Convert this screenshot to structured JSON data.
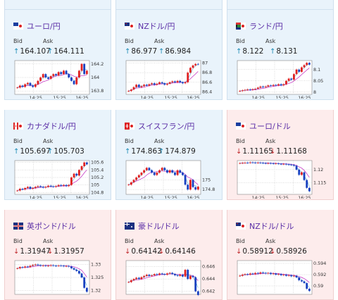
{
  "labels": {
    "bid": "Bid",
    "ask": "Ask"
  },
  "tiles": [
    {
      "id": "usdjpy-top",
      "flag": "us",
      "title": "",
      "dir": "up"
    },
    {
      "id": "eurjpy",
      "flag": "eu",
      "title": "ユーロ/円",
      "dir": "up",
      "bid": "164.107",
      "ask": "164.111",
      "y_ticks": [
        "164.2",
        "164",
        "163.8"
      ],
      "y_ticks_value": [
        164.2,
        164,
        163.8
      ],
      "ylim": [
        163.75,
        164.25
      ],
      "x_ticks": [
        "14:25",
        "15:25",
        "16:25"
      ],
      "series": [
        163.85,
        163.88,
        163.86,
        163.9,
        163.92,
        163.88,
        163.86,
        163.9,
        163.95,
        164.0,
        164.05,
        164.0,
        163.98,
        164.02,
        164.05,
        164.03,
        164.08,
        164.05,
        164.1,
        164.05,
        164.0,
        163.95,
        163.9,
        164.0,
        164.1,
        164.2,
        164.05,
        164.1
      ]
    },
    {
      "id": "nzdjpy",
      "flag": "nz",
      "title": "NZドル/円",
      "dir": "up",
      "bid": "86.977",
      "ask": "86.984",
      "y_ticks": [
        "87",
        "86.8",
        "86.6",
        "86.4"
      ],
      "y_ticks_value": [
        87,
        86.8,
        86.6,
        86.4
      ],
      "ylim": [
        86.35,
        87.05
      ],
      "x_ticks": [
        "14:25",
        "15:25",
        "16:25"
      ],
      "series": [
        86.42,
        86.45,
        86.5,
        86.55,
        86.5,
        86.52,
        86.55,
        86.53,
        86.56,
        86.58,
        86.55,
        86.57,
        86.6,
        86.58,
        86.55,
        86.57,
        86.6,
        86.62,
        86.6,
        86.63,
        86.6,
        86.58,
        86.6,
        86.8,
        86.9,
        86.95,
        86.98,
        86.97
      ]
    },
    {
      "id": "zarjpy",
      "flag": "za",
      "title": "ランド/円",
      "dir": "up",
      "bid": "8.122",
      "ask": "8.131",
      "y_ticks": [
        "8.1",
        "8.05",
        "8"
      ],
      "y_ticks_value": [
        8.1,
        8.05,
        8.0
      ],
      "ylim": [
        7.99,
        8.14
      ],
      "x_ticks": [
        "14:25",
        "15:25",
        "16:25"
      ],
      "series": [
        8.005,
        8.008,
        8.01,
        8.012,
        8.01,
        8.013,
        8.015,
        8.02,
        8.025,
        8.022,
        8.025,
        8.03,
        8.028,
        8.032,
        8.03,
        8.035,
        8.03,
        8.035,
        8.05,
        8.06,
        8.055,
        8.08,
        8.1,
        8.09,
        8.11,
        8.12,
        8.13,
        8.122
      ]
    },
    {
      "id": "cadjpy",
      "flag": "ca",
      "title": "カナダドル/円",
      "dir": "up",
      "bid": "105.697",
      "ask": "105.703",
      "y_ticks": [
        "105.6",
        "105.4",
        "105.2",
        "105",
        "104.8"
      ],
      "y_ticks_value": [
        105.6,
        105.4,
        105.2,
        105.0,
        104.8
      ],
      "ylim": [
        104.75,
        105.65
      ],
      "x_ticks": [
        "14:25",
        "15:25",
        "16:25"
      ],
      "series": [
        104.85,
        104.9,
        104.88,
        104.92,
        104.95,
        104.9,
        104.92,
        104.95,
        104.97,
        104.95,
        104.93,
        104.95,
        104.98,
        104.96,
        104.95,
        104.97,
        105.0,
        104.98,
        105.0,
        104.97,
        105.0,
        105.2,
        105.3,
        105.25,
        105.4,
        105.5,
        105.6,
        105.55
      ]
    },
    {
      "id": "chfjpy",
      "flag": "ch",
      "title": "スイスフラン/円",
      "dir": "up",
      "bid": "174.863",
      "ask": "174.879",
      "y_ticks": [
        "175",
        "174.8"
      ],
      "y_ticks_value": [
        175,
        174.8
      ],
      "ylim": [
        174.7,
        175.4
      ],
      "x_ticks": [
        "14:25",
        "15:25",
        "16:25"
      ],
      "series": [
        174.9,
        174.95,
        175.0,
        175.05,
        175.1,
        175.15,
        175.2,
        175.25,
        175.2,
        175.15,
        175.1,
        175.15,
        175.2,
        175.25,
        175.2,
        175.15,
        175.2,
        175.15,
        175.1,
        175.2,
        175.15,
        175.1,
        174.9,
        174.8,
        175.0,
        174.85,
        174.8,
        174.86
      ]
    },
    {
      "id": "eurusd",
      "flag": "eu",
      "title": "ユーロ/ドル",
      "dir": "down",
      "bid": "1.11165",
      "ask": "1.11168",
      "y_ticks": [
        "1.12",
        "1.115"
      ],
      "y_ticks_value": [
        1.12,
        1.115
      ],
      "ylim": [
        1.1105,
        1.1235
      ],
      "x_ticks": [
        "14:25",
        "15:25",
        "16:25"
      ],
      "series": [
        1.1225,
        1.1226,
        1.1227,
        1.1226,
        1.1228,
        1.1227,
        1.1226,
        1.1227,
        1.1226,
        1.1225,
        1.1224,
        1.1225,
        1.1224,
        1.1223,
        1.1224,
        1.1222,
        1.1221,
        1.1222,
        1.122,
        1.1219,
        1.1218,
        1.1215,
        1.12,
        1.118,
        1.119,
        1.116,
        1.113,
        1.1117
      ]
    },
    {
      "id": "gbpusd",
      "flag": "gb",
      "title": "英ポンド/ドル",
      "dir": "down",
      "bid": "1.31947",
      "ask": "1.31957",
      "y_ticks": [
        "1.33",
        "1.325",
        "1.32"
      ],
      "y_ticks_value": [
        1.33,
        1.325,
        1.32
      ],
      "ylim": [
        1.3185,
        1.3315
      ],
      "x_ticks": [],
      "series": [
        1.3285,
        1.329,
        1.3288,
        1.3292,
        1.329,
        1.3295,
        1.3298,
        1.33,
        1.3297,
        1.3295,
        1.3296,
        1.3294,
        1.3295,
        1.3297,
        1.3295,
        1.3294,
        1.3296,
        1.3295,
        1.3293,
        1.3294,
        1.3292,
        1.3285,
        1.328,
        1.3275,
        1.3265,
        1.325,
        1.321,
        1.3195
      ]
    },
    {
      "id": "audusd",
      "flag": "au",
      "title": "豪ドル/ドル",
      "dir": "down",
      "bid": "0.64142",
      "ask": "0.64146",
      "y_ticks": [
        "0.646",
        "0.644",
        "0.642"
      ],
      "y_ticks_value": [
        0.646,
        0.644,
        0.642
      ],
      "ylim": [
        0.6415,
        0.647
      ],
      "x_ticks": [],
      "series": [
        0.6435,
        0.6438,
        0.644,
        0.6442,
        0.644,
        0.6443,
        0.6445,
        0.6447,
        0.6445,
        0.6446,
        0.6448,
        0.6447,
        0.6449,
        0.6448,
        0.6447,
        0.6449,
        0.645,
        0.6448,
        0.6446,
        0.6445,
        0.6447,
        0.6444,
        0.6455,
        0.644,
        0.6445,
        0.6443,
        0.642,
        0.6414
      ]
    },
    {
      "id": "nzdusd",
      "flag": "nz",
      "title": "NZドル/ドル",
      "dir": "down",
      "bid": "0.58912",
      "ask": "0.58926",
      "y_ticks": [
        "0.594",
        "0.592",
        "0.59"
      ],
      "y_ticks_value": [
        0.594,
        0.592,
        0.59
      ],
      "ylim": [
        0.5885,
        0.5945
      ],
      "x_ticks": [],
      "series": [
        0.5918,
        0.592,
        0.5921,
        0.592,
        0.5922,
        0.5921,
        0.5923,
        0.5922,
        0.5924,
        0.5923,
        0.5922,
        0.5923,
        0.5921,
        0.5922,
        0.592,
        0.5921,
        0.5919,
        0.592,
        0.5918,
        0.5919,
        0.5917,
        0.5918,
        0.5915,
        0.591,
        0.5908,
        0.5905,
        0.5895,
        0.5891
      ]
    }
  ]
}
